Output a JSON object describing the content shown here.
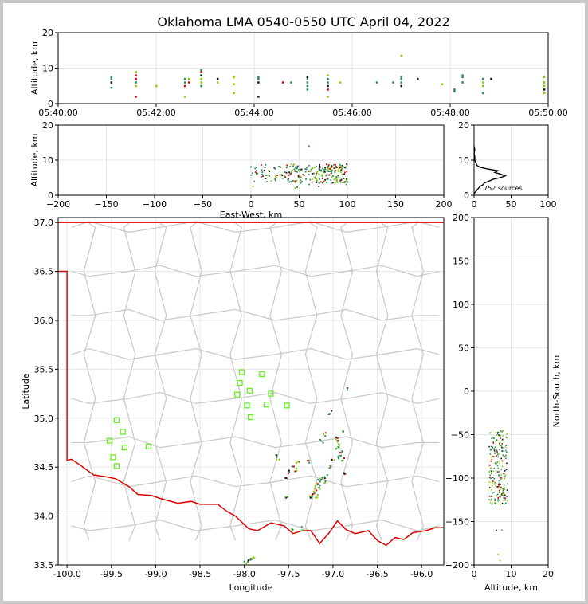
{
  "title": "Oklahoma LMA 0540-0550 UTC April 04, 2022",
  "colors": {
    "source_low": "#2e8b57",
    "source_mid": "#7fd000",
    "source_high": "#e00000",
    "source_dark": "#111111",
    "station": "#66ee22",
    "state_border": "#e00000",
    "county": "#c8c8c8"
  },
  "chart_data": [
    {
      "id": "time-height",
      "type": "scatter",
      "xlabel": "",
      "ylabel": "Altitude, km",
      "ylim": [
        0,
        20
      ],
      "yticks": [
        0,
        10,
        20
      ],
      "xticks": [
        "05:40:00",
        "05:42:00",
        "05:44:00",
        "05:46:00",
        "05:48:00",
        "05:50:00"
      ],
      "grid": true,
      "points": [
        {
          "t": "05:41:05",
          "alt": [
            4.5,
            6,
            7,
            7.5
          ]
        },
        {
          "t": "05:41:35",
          "alt": [
            2,
            5,
            6,
            7,
            8,
            9
          ]
        },
        {
          "t": "05:42:00",
          "alt": [
            5
          ]
        },
        {
          "t": "05:42:35",
          "alt": [
            2,
            5,
            6,
            7
          ]
        },
        {
          "t": "05:42:40",
          "alt": [
            6,
            7
          ]
        },
        {
          "t": "05:42:55",
          "alt": [
            5,
            6,
            7,
            8,
            9,
            9.5
          ]
        },
        {
          "t": "05:43:15",
          "alt": [
            6,
            7
          ]
        },
        {
          "t": "05:43:35",
          "alt": [
            3,
            5.5,
            7.5
          ]
        },
        {
          "t": "05:44:05",
          "alt": [
            2,
            6,
            7,
            7.5
          ]
        },
        {
          "t": "05:44:35",
          "alt": [
            6
          ]
        },
        {
          "t": "05:44:45",
          "alt": [
            6
          ]
        },
        {
          "t": "05:45:05",
          "alt": [
            4,
            5,
            6,
            7,
            7.5
          ]
        },
        {
          "t": "05:45:30",
          "alt": [
            2,
            4,
            5,
            6,
            7,
            8
          ]
        },
        {
          "t": "05:45:45",
          "alt": [
            6
          ]
        },
        {
          "t": "05:46:30",
          "alt": [
            6
          ]
        },
        {
          "t": "05:46:50",
          "alt": [
            6
          ]
        },
        {
          "t": "05:47:00",
          "alt": [
            5,
            6,
            7,
            7.5,
            13.5
          ]
        },
        {
          "t": "05:47:20",
          "alt": [
            7
          ]
        },
        {
          "t": "05:47:50",
          "alt": [
            5.5
          ]
        },
        {
          "t": "05:48:05",
          "alt": [
            3.5,
            4
          ]
        },
        {
          "t": "05:48:15",
          "alt": [
            6,
            7.5,
            8
          ]
        },
        {
          "t": "05:48:40",
          "alt": [
            3,
            5,
            6,
            7
          ]
        },
        {
          "t": "05:48:50",
          "alt": [
            7
          ]
        },
        {
          "t": "05:49:55",
          "alt": [
            3,
            4,
            5,
            6,
            7.5
          ]
        }
      ]
    },
    {
      "id": "east-west-altitude",
      "type": "scatter",
      "xlabel": "East-West, km",
      "ylabel": "Altitude, km",
      "xlim": [
        -200,
        200
      ],
      "ylim": [
        0,
        20
      ],
      "xticks": [
        -200,
        -150,
        -100,
        -50,
        0,
        50,
        100,
        150,
        200
      ],
      "yticks": [
        0,
        10,
        20
      ],
      "grid": true
    },
    {
      "id": "altitude-histogram",
      "type": "line",
      "xlim": [
        0,
        100
      ],
      "ylim": [
        0,
        20
      ],
      "xticks": [
        0,
        50,
        100
      ],
      "yticks": [
        0,
        10,
        20
      ],
      "annotation": "752 sources",
      "series": [
        {
          "alt": [
            0.5,
            1,
            1.5,
            2,
            2.5,
            3,
            3.5,
            4,
            4.5,
            5,
            5.5,
            6,
            6.5,
            7,
            7.5,
            8,
            8.5,
            9,
            9.5,
            10,
            11,
            12,
            13,
            14
          ],
          "count": [
            0,
            2,
            4,
            6,
            8,
            12,
            14,
            20,
            25,
            35,
            42,
            36,
            28,
            32,
            18,
            8,
            4,
            3,
            2,
            1,
            1,
            0,
            1,
            0
          ]
        }
      ]
    },
    {
      "id": "plan-view-map",
      "type": "scatter",
      "xlabel": "Longitude",
      "ylabel": "Latitude",
      "xlim": [
        -100.1,
        -95.75
      ],
      "ylim": [
        33.5,
        37.05
      ],
      "xticks": [
        "-100.0",
        "-99.5",
        "-99.0",
        "-98.5",
        "-98.0",
        "-97.5",
        "-97.0",
        "-96.5",
        "-96.0"
      ],
      "yticks": [
        "33.5",
        "34.0",
        "34.5",
        "35.0",
        "35.5",
        "36.0",
        "36.5",
        "37.0"
      ],
      "grid": true,
      "stations": [
        {
          "lon": -98.03,
          "lat": 35.47
        },
        {
          "lon": -97.8,
          "lat": 35.45
        },
        {
          "lon": -98.05,
          "lat": 35.36
        },
        {
          "lon": -97.94,
          "lat": 35.28
        },
        {
          "lon": -98.08,
          "lat": 35.24
        },
        {
          "lon": -97.7,
          "lat": 35.25
        },
        {
          "lon": -97.97,
          "lat": 35.13
        },
        {
          "lon": -97.75,
          "lat": 35.14
        },
        {
          "lon": -97.52,
          "lat": 35.13
        },
        {
          "lon": -97.93,
          "lat": 35.01
        },
        {
          "lon": -99.44,
          "lat": 34.98
        },
        {
          "lon": -99.37,
          "lat": 34.86
        },
        {
          "lon": -99.52,
          "lat": 34.77
        },
        {
          "lon": -99.35,
          "lat": 34.7
        },
        {
          "lon": -99.08,
          "lat": 34.71
        },
        {
          "lon": -99.48,
          "lat": 34.6
        },
        {
          "lon": -99.44,
          "lat": 34.51
        }
      ],
      "sources": [
        {
          "lon": -96.85,
          "lat": 35.29
        },
        {
          "lon": -97.03,
          "lat": 35.06
        },
        {
          "lon": -97.1,
          "lat": 34.83
        },
        {
          "lon": -97.13,
          "lat": 34.76
        },
        {
          "lon": -96.93,
          "lat": 34.76
        },
        {
          "lon": -96.92,
          "lat": 34.72
        },
        {
          "lon": -96.95,
          "lat": 34.7
        },
        {
          "lon": -96.9,
          "lat": 34.66
        },
        {
          "lon": -96.92,
          "lat": 34.63
        },
        {
          "lon": -96.95,
          "lat": 34.6
        },
        {
          "lon": -96.88,
          "lat": 34.58
        },
        {
          "lon": -97.0,
          "lat": 34.56
        },
        {
          "lon": -97.03,
          "lat": 34.5
        },
        {
          "lon": -96.86,
          "lat": 34.44
        },
        {
          "lon": -97.08,
          "lat": 34.4
        },
        {
          "lon": -97.12,
          "lat": 34.38
        },
        {
          "lon": -97.15,
          "lat": 34.36
        },
        {
          "lon": -97.1,
          "lat": 34.34
        },
        {
          "lon": -97.18,
          "lat": 34.31
        },
        {
          "lon": -97.22,
          "lat": 34.29
        },
        {
          "lon": -97.14,
          "lat": 34.3
        },
        {
          "lon": -97.2,
          "lat": 34.25
        },
        {
          "lon": -97.23,
          "lat": 34.22
        },
        {
          "lon": -97.25,
          "lat": 34.19
        },
        {
          "lon": -97.19,
          "lat": 34.2
        },
        {
          "lon": -97.28,
          "lat": 34.55
        },
        {
          "lon": -97.4,
          "lat": 34.55
        },
        {
          "lon": -97.45,
          "lat": 34.5
        },
        {
          "lon": -97.42,
          "lat": 34.47
        },
        {
          "lon": -97.5,
          "lat": 34.45
        },
        {
          "lon": -97.62,
          "lat": 34.59
        },
        {
          "lon": -97.65,
          "lat": 34.61
        },
        {
          "lon": -97.52,
          "lat": 34.37
        },
        {
          "lon": -97.53,
          "lat": 34.18
        },
        {
          "lon": -97.47,
          "lat": 33.86
        },
        {
          "lon": -97.35,
          "lat": 33.87
        },
        {
          "lon": -97.9,
          "lat": 33.59
        },
        {
          "lon": -97.93,
          "lat": 33.55
        },
        {
          "lon": -97.98,
          "lat": 33.52
        },
        {
          "lon": -97.95,
          "lat": 33.54
        },
        {
          "lon": -96.9,
          "lat": 34.85
        },
        {
          "lon": -96.95,
          "lat": 34.79
        }
      ]
    },
    {
      "id": "altitude-north-south",
      "type": "scatter",
      "xlabel": "Altitude, km",
      "ylabel": "North-South, km",
      "xlim": [
        0,
        20
      ],
      "ylim": [
        -200,
        200
      ],
      "xticks": [
        0,
        10,
        20
      ],
      "yticks": [
        -200,
        -150,
        -100,
        -50,
        0,
        50,
        100,
        150,
        200
      ],
      "grid": true
    }
  ]
}
